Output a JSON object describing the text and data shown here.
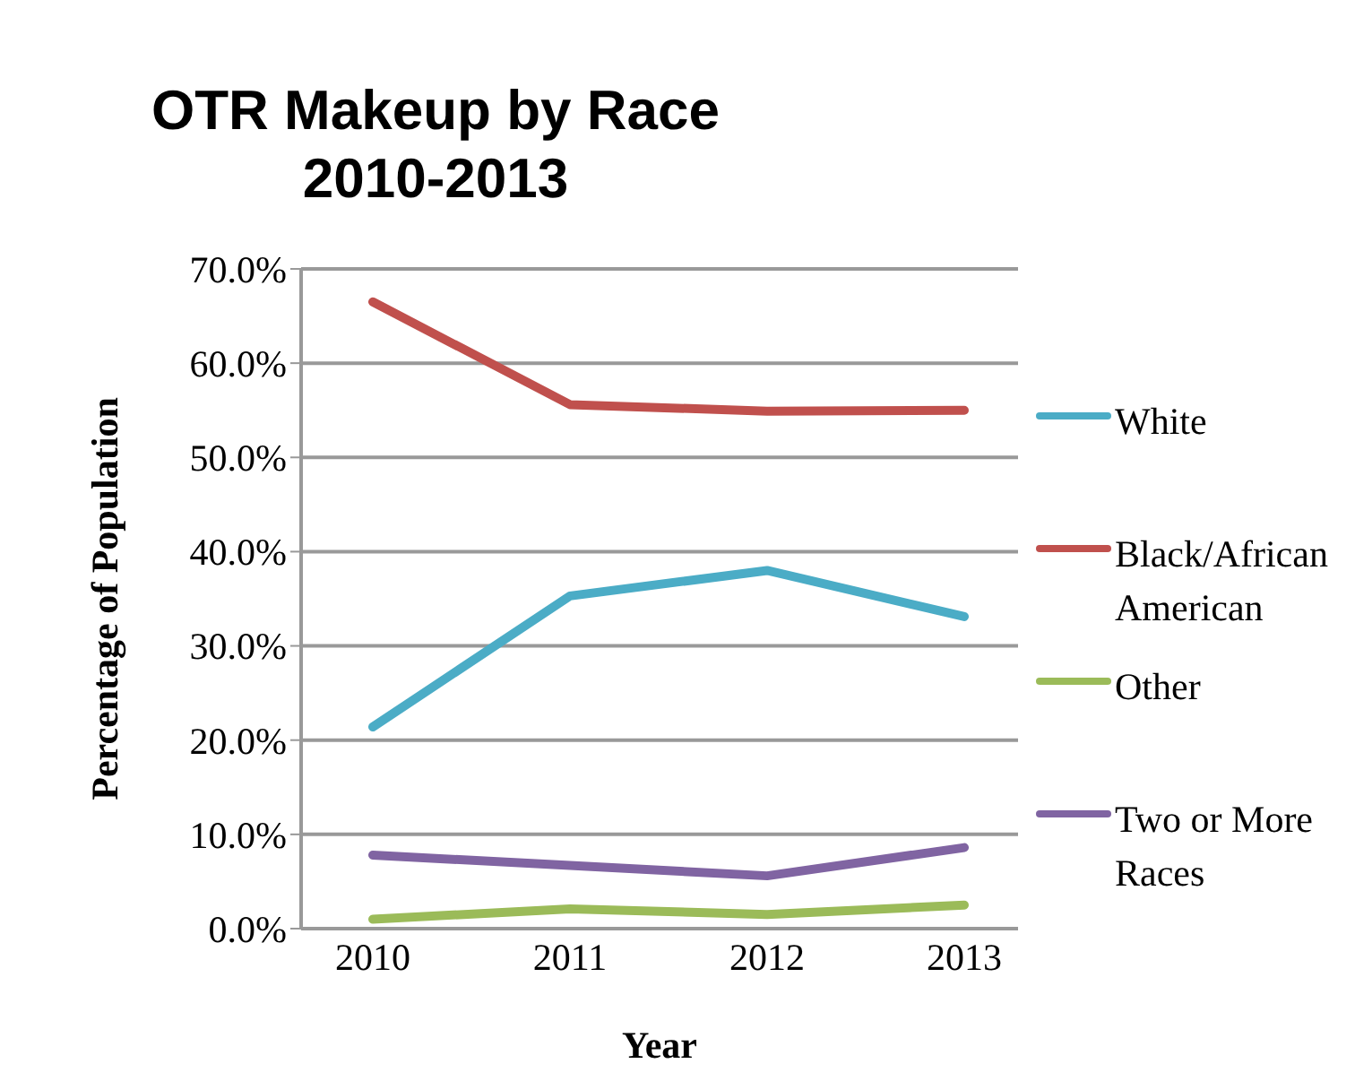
{
  "chart_data": {
    "type": "line",
    "title": "OTR Makeup by Race\n2010-2013",
    "xlabel": "Year",
    "ylabel": "Percentage of Population",
    "categories": [
      "2010",
      "2011",
      "2012",
      "2013"
    ],
    "series": [
      {
        "name": "White",
        "color": "#4bacc6",
        "values": [
          21.4,
          35.3,
          38.0,
          33.1
        ]
      },
      {
        "name": "Black/African American",
        "color": "#c0504d",
        "values": [
          66.5,
          55.6,
          54.9,
          55.0
        ]
      },
      {
        "name": "Other",
        "color": "#9bbb59",
        "values": [
          1.0,
          2.1,
          1.5,
          2.5
        ]
      },
      {
        "name": "Two or More Races",
        "color": "#8064a2",
        "values": [
          7.8,
          6.7,
          5.6,
          8.6
        ]
      }
    ],
    "ylim": [
      0,
      70
    ],
    "yticks": [
      {
        "value": 0,
        "label": "0.0%"
      },
      {
        "value": 10,
        "label": "10.0%"
      },
      {
        "value": 20,
        "label": "20.0%"
      },
      {
        "value": 30,
        "label": "30.0%"
      },
      {
        "value": 40,
        "label": "40.0%"
      },
      {
        "value": 50,
        "label": "50.0%"
      },
      {
        "value": 60,
        "label": "60.0%"
      },
      {
        "value": 70,
        "label": "70.0%"
      }
    ],
    "grid": "y",
    "legend": "right",
    "marker": "none",
    "line_style": "solid"
  }
}
